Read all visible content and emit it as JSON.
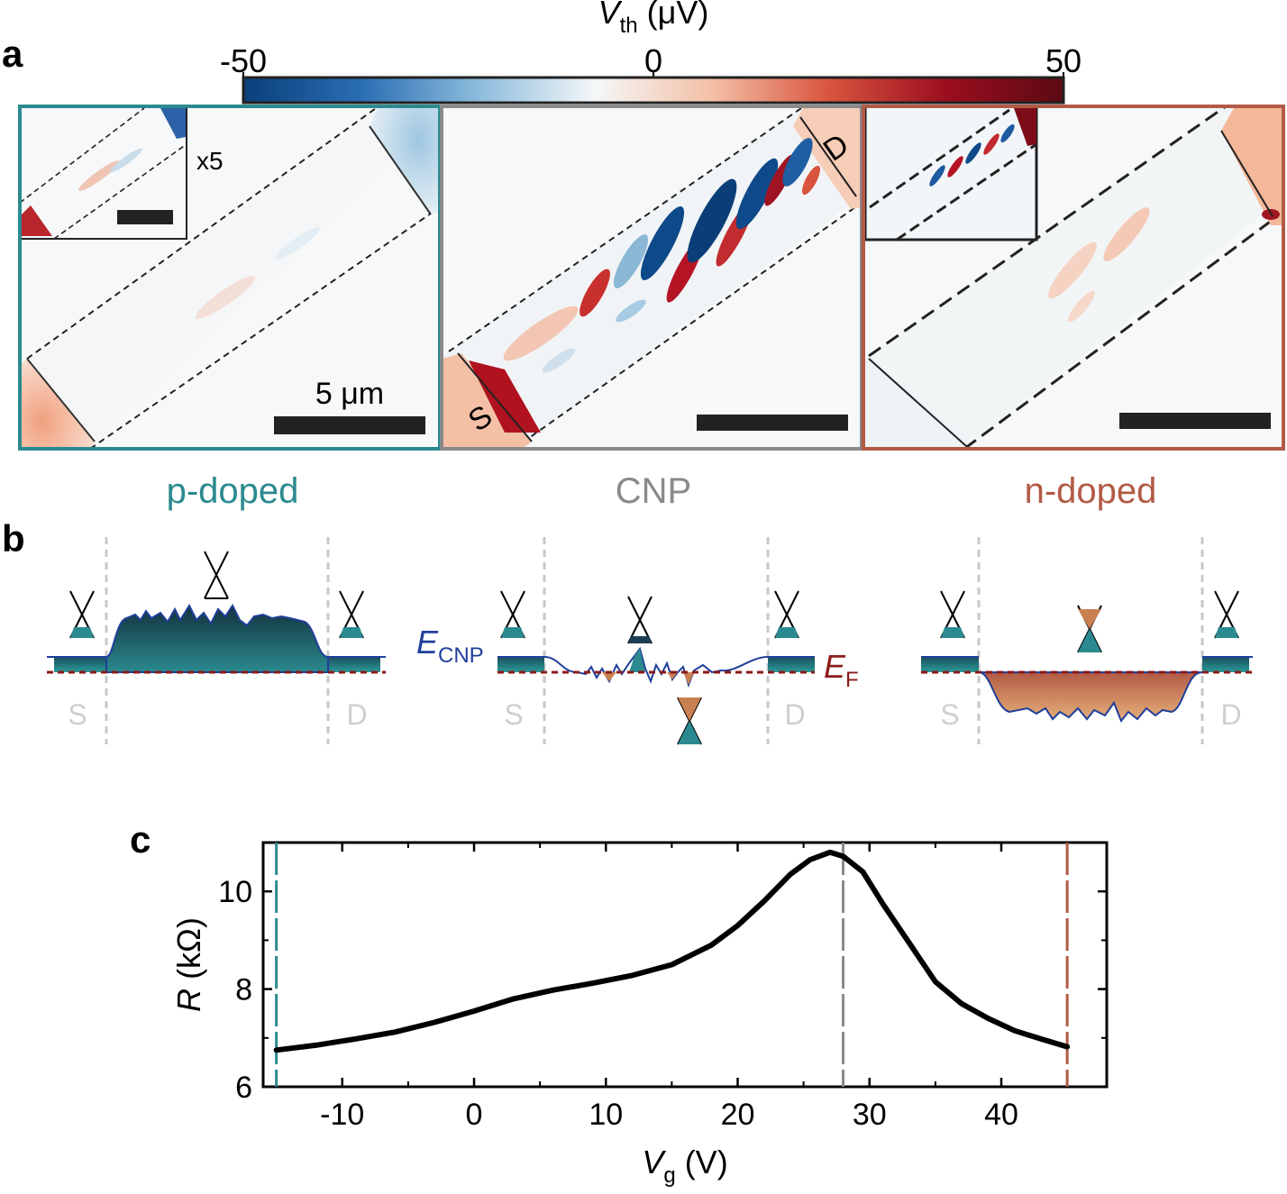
{
  "panel_labels": {
    "a": "a",
    "b": "b",
    "c": "c"
  },
  "colorbar": {
    "title_symbol": "V",
    "title_sub": "th",
    "title_unit": " (μV)",
    "tick_min": "-50",
    "tick_mid": "0",
    "tick_max": "50",
    "colors": [
      "#0a3f7a",
      "#2a6db3",
      "#8cbcdc",
      "#f4f7f8",
      "#f3c0a6",
      "#d9543e",
      "#9b0e1f",
      "#5b0a14"
    ]
  },
  "maps": [
    {
      "label": "p-doped",
      "label_color": "#2b8a8f",
      "frame_color": "#2b8a8f",
      "inset_factor": "x5",
      "scalebar_label": "5 μm"
    },
    {
      "label": "CNP",
      "label_color": "#8a8a8a",
      "frame_color": "#8a8a8a",
      "source_label": "S",
      "drain_label": "D"
    },
    {
      "label": "n-doped",
      "label_color": "#b25a45",
      "frame_color": "#b25a45"
    }
  ],
  "band_diagrams": {
    "contact_left": "S",
    "contact_right": "D",
    "ecnp_symbol": "E",
    "ecnp_sub": "CNP",
    "ef_symbol": "E",
    "ef_sub": "F",
    "ecnp_color": "#1f3f9a",
    "ef_color": "#8b1a1a"
  },
  "chart_data": {
    "type": "line",
    "title": "",
    "xlabel_symbol": "V",
    "xlabel_sub": "g",
    "xlabel_unit": " (V)",
    "ylabel_symbol": "R",
    "ylabel_unit": " (kΩ)",
    "xlim": [
      -16,
      48
    ],
    "ylim": [
      6,
      11
    ],
    "xticks": [
      -10,
      0,
      10,
      20,
      30,
      40
    ],
    "yticks": [
      6,
      8,
      10
    ],
    "xtick_labels": [
      "-10",
      "0",
      "10",
      "20",
      "30",
      "40"
    ],
    "ytick_labels": [
      "6",
      "8",
      "10"
    ],
    "grid": false,
    "series": [
      {
        "color": "#000000",
        "x": [
          -15,
          -12,
          -9,
          -6,
          -3,
          0,
          3,
          6,
          9,
          12,
          15,
          18,
          20,
          22,
          24,
          25.5,
          27,
          28,
          29.5,
          31,
          33,
          35,
          37,
          39,
          41,
          43,
          45
        ],
        "y": [
          6.75,
          6.85,
          6.98,
          7.12,
          7.32,
          7.55,
          7.8,
          7.98,
          8.12,
          8.28,
          8.5,
          8.9,
          9.3,
          9.8,
          10.35,
          10.65,
          10.8,
          10.72,
          10.4,
          9.75,
          8.95,
          8.15,
          7.7,
          7.4,
          7.15,
          6.98,
          6.82
        ]
      }
    ],
    "vlines": [
      {
        "x": -15,
        "color": "#2b8a8f",
        "dashed": true
      },
      {
        "x": 28,
        "color": "#8a8a8a",
        "dashed": true
      },
      {
        "x": 45,
        "color": "#b25a45",
        "dashed": true
      }
    ]
  }
}
